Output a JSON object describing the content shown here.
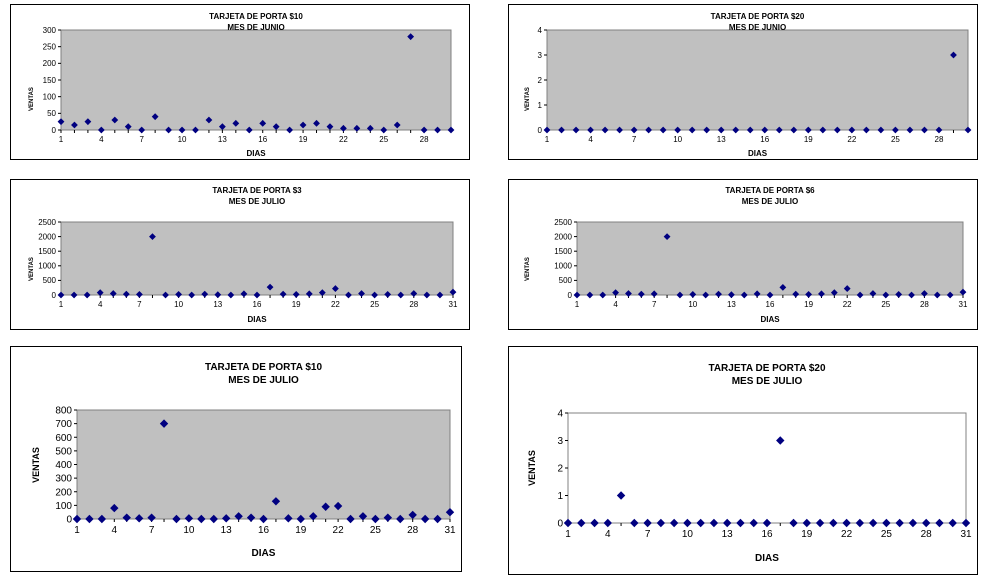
{
  "chart_data": [
    {
      "type": "scatter",
      "title": "TARJETA DE PORTA $10",
      "subtitle": "MES DE JUNIO",
      "xlabel": "DIAS",
      "ylabel": "VENTAS",
      "xlim": [
        1,
        30
      ],
      "ylim": [
        0,
        300
      ],
      "xticks": [
        "1",
        "4",
        "7",
        "10",
        "13",
        "16",
        "19",
        "22",
        "25",
        "28"
      ],
      "yticks": [
        "0",
        "50",
        "100",
        "150",
        "200",
        "250",
        "300"
      ],
      "plot_color": "#c0c0c0",
      "marker_color": "#000080",
      "grid": false,
      "legend": false,
      "x": [
        1,
        2,
        3,
        4,
        5,
        6,
        7,
        8,
        9,
        10,
        11,
        12,
        13,
        14,
        15,
        16,
        17,
        18,
        19,
        20,
        21,
        22,
        23,
        24,
        25,
        26,
        27,
        28,
        29,
        30
      ],
      "y": [
        25,
        15,
        25,
        0,
        30,
        10,
        0,
        40,
        0,
        0,
        0,
        30,
        10,
        20,
        0,
        20,
        10,
        0,
        15,
        20,
        10,
        5,
        5,
        5,
        0,
        15,
        280,
        0,
        0,
        0
      ]
    },
    {
      "type": "scatter",
      "title": "TARJETA DE PORTA $20",
      "subtitle": "MES DE JUNIO",
      "xlabel": "DIAS",
      "ylabel": "VENTAS",
      "xlim": [
        1,
        30
      ],
      "ylim": [
        0,
        4
      ],
      "xticks": [
        "1",
        "4",
        "7",
        "10",
        "13",
        "16",
        "19",
        "22",
        "25",
        "28"
      ],
      "yticks": [
        "0",
        "1",
        "2",
        "3",
        "4"
      ],
      "plot_color": "#c0c0c0",
      "marker_color": "#000080",
      "grid": false,
      "legend": false,
      "x": [
        1,
        2,
        3,
        4,
        5,
        6,
        7,
        8,
        9,
        10,
        11,
        12,
        13,
        14,
        15,
        16,
        17,
        18,
        19,
        20,
        21,
        22,
        23,
        24,
        25,
        26,
        27,
        28,
        29,
        30
      ],
      "y": [
        0,
        0,
        0,
        0,
        0,
        0,
        0,
        0,
        0,
        0,
        0,
        0,
        0,
        0,
        0,
        0,
        0,
        0,
        0,
        0,
        0,
        0,
        0,
        0,
        0,
        0,
        0,
        0,
        3,
        0
      ]
    },
    {
      "type": "scatter",
      "title": "TARJETA DE PORTA $3",
      "subtitle": "MES DE JULIO",
      "xlabel": "DIAS",
      "ylabel": "VENTAS",
      "xlim": [
        1,
        31
      ],
      "ylim": [
        0,
        2500
      ],
      "xticks": [
        "1",
        "4",
        "7",
        "10",
        "13",
        "16",
        "19",
        "22",
        "25",
        "28",
        "31"
      ],
      "yticks": [
        "0",
        "500",
        "1000",
        "1500",
        "2000",
        "2500"
      ],
      "plot_color": "#c0c0c0",
      "marker_color": "#000080",
      "grid": false,
      "legend": false,
      "x": [
        1,
        2,
        3,
        4,
        5,
        6,
        7,
        8,
        9,
        10,
        11,
        12,
        13,
        14,
        15,
        16,
        17,
        18,
        19,
        20,
        21,
        22,
        23,
        24,
        25,
        26,
        27,
        28,
        29,
        30,
        31
      ],
      "y": [
        0,
        0,
        0,
        80,
        50,
        30,
        20,
        2000,
        0,
        20,
        0,
        30,
        10,
        0,
        40,
        0,
        270,
        30,
        20,
        40,
        80,
        220,
        0,
        50,
        0,
        20,
        0,
        50,
        0,
        0,
        100
      ]
    },
    {
      "type": "scatter",
      "title": "TARJETA DE PORTA $6",
      "subtitle": "MES DE JULIO",
      "xlabel": "DIAS",
      "ylabel": "VENTAS",
      "xlim": [
        1,
        31
      ],
      "ylim": [
        0,
        2500
      ],
      "xticks": [
        "1",
        "4",
        "7",
        "10",
        "13",
        "16",
        "19",
        "22",
        "25",
        "28",
        "31"
      ],
      "yticks": [
        "0",
        "500",
        "1000",
        "1500",
        "2000",
        "2500"
      ],
      "plot_color": "#c0c0c0",
      "marker_color": "#000080",
      "grid": false,
      "legend": false,
      "x": [
        1,
        2,
        3,
        4,
        5,
        6,
        7,
        8,
        9,
        10,
        11,
        12,
        13,
        14,
        15,
        16,
        17,
        18,
        19,
        20,
        21,
        22,
        23,
        24,
        25,
        26,
        27,
        28,
        29,
        30,
        31
      ],
      "y": [
        0,
        0,
        0,
        80,
        50,
        30,
        40,
        2000,
        0,
        20,
        0,
        30,
        10,
        0,
        40,
        0,
        260,
        30,
        20,
        40,
        80,
        220,
        0,
        50,
        0,
        20,
        0,
        50,
        0,
        0,
        100
      ]
    },
    {
      "type": "scatter",
      "title": "TARJETA DE PORTA $10",
      "subtitle": "MES DE JULIO",
      "xlabel": "DIAS",
      "ylabel": "VENTAS",
      "xlim": [
        1,
        31
      ],
      "ylim": [
        0,
        800
      ],
      "xticks": [
        "1",
        "4",
        "7",
        "10",
        "13",
        "16",
        "19",
        "22",
        "25",
        "28",
        "31"
      ],
      "yticks": [
        "0",
        "100",
        "200",
        "300",
        "400",
        "500",
        "600",
        "700",
        "800"
      ],
      "plot_color": "#c0c0c0",
      "marker_color": "#000080",
      "grid": false,
      "legend": false,
      "x": [
        1,
        2,
        3,
        4,
        5,
        6,
        7,
        8,
        9,
        10,
        11,
        12,
        13,
        14,
        15,
        16,
        17,
        18,
        19,
        20,
        21,
        22,
        23,
        24,
        25,
        26,
        27,
        28,
        29,
        30,
        31
      ],
      "y": [
        0,
        0,
        0,
        80,
        10,
        5,
        10,
        700,
        0,
        5,
        0,
        0,
        5,
        20,
        10,
        0,
        130,
        5,
        0,
        20,
        90,
        95,
        0,
        20,
        0,
        10,
        0,
        30,
        0,
        0,
        50
      ]
    },
    {
      "type": "scatter",
      "title": "TARJETA DE PORTA $20",
      "subtitle": "MES DE JULIO",
      "xlabel": "DIAS",
      "ylabel": "VENTAS",
      "xlim": [
        1,
        31
      ],
      "ylim": [
        0,
        4
      ],
      "xticks": [
        "1",
        "4",
        "7",
        "10",
        "13",
        "16",
        "19",
        "22",
        "25",
        "28",
        "31"
      ],
      "yticks": [
        "0",
        "1",
        "2",
        "3",
        "4"
      ],
      "plot_color": "#ffffff",
      "marker_color": "#000080",
      "grid": false,
      "legend": false,
      "x": [
        1,
        2,
        3,
        4,
        5,
        6,
        7,
        8,
        9,
        10,
        11,
        12,
        13,
        14,
        15,
        16,
        17,
        18,
        19,
        20,
        21,
        22,
        23,
        24,
        25,
        26,
        27,
        28,
        29,
        30,
        31
      ],
      "y": [
        0,
        0,
        0,
        0,
        1,
        0,
        0,
        0,
        0,
        0,
        0,
        0,
        0,
        0,
        0,
        0,
        3,
        0,
        0,
        0,
        0,
        0,
        0,
        0,
        0,
        0,
        0,
        0,
        0,
        0,
        0
      ]
    }
  ]
}
